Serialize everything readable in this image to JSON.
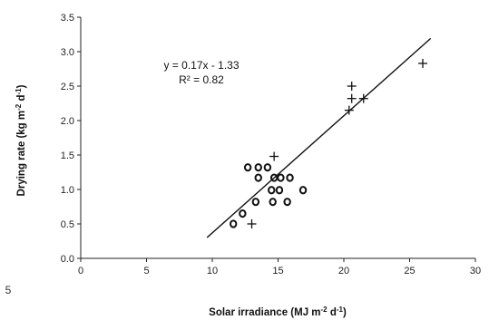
{
  "chart_data": {
    "type": "scatter",
    "title": "",
    "xlabel": "Solar irradiance (MJ m⁻² d¹)",
    "xlabel_parts": [
      "Solar irradiance (MJ m",
      "-2",
      " d",
      "-1",
      ")"
    ],
    "ylabel": "Drying rate (kg m⁻² d¹)",
    "ylabel_parts": [
      "Drying rate (kg m",
      "-2",
      " d",
      "-1",
      ")"
    ],
    "xlim": [
      0,
      30
    ],
    "ylim": [
      0,
      3.5
    ],
    "xticks": [
      "0",
      "5",
      "10",
      "15",
      "20",
      "25",
      "30"
    ],
    "yticks": [
      "0.0",
      "0.5",
      "1.0",
      "1.5",
      "2.0",
      "2.5",
      "3.0",
      "3.5"
    ],
    "grid": false,
    "series": [
      {
        "marker": "circle",
        "points": [
          [
            11.6,
            0.5
          ],
          [
            12.3,
            0.65
          ],
          [
            12.7,
            1.32
          ],
          [
            13.5,
            1.32
          ],
          [
            14.2,
            1.32
          ],
          [
            13.5,
            1.17
          ],
          [
            14.7,
            1.17
          ],
          [
            15.2,
            1.17
          ],
          [
            15.9,
            1.17
          ],
          [
            14.5,
            0.99
          ],
          [
            15.1,
            0.99
          ],
          [
            16.9,
            0.99
          ],
          [
            13.3,
            0.82
          ],
          [
            14.6,
            0.82
          ],
          [
            15.7,
            0.82
          ]
        ]
      },
      {
        "marker": "plus",
        "points": [
          [
            13.0,
            0.5
          ],
          [
            14.7,
            1.48
          ],
          [
            20.4,
            2.15
          ],
          [
            20.6,
            2.32
          ],
          [
            21.5,
            2.32
          ],
          [
            20.6,
            2.5
          ],
          [
            26.0,
            2.83
          ]
        ]
      }
    ],
    "trendline": {
      "slope": 0.17,
      "intercept": -1.33,
      "x_range": [
        9.6,
        26.6
      ]
    },
    "annotations": [
      "y = 0.17x - 1.33",
      "R² = 0.82"
    ],
    "stray_text": "5"
  }
}
